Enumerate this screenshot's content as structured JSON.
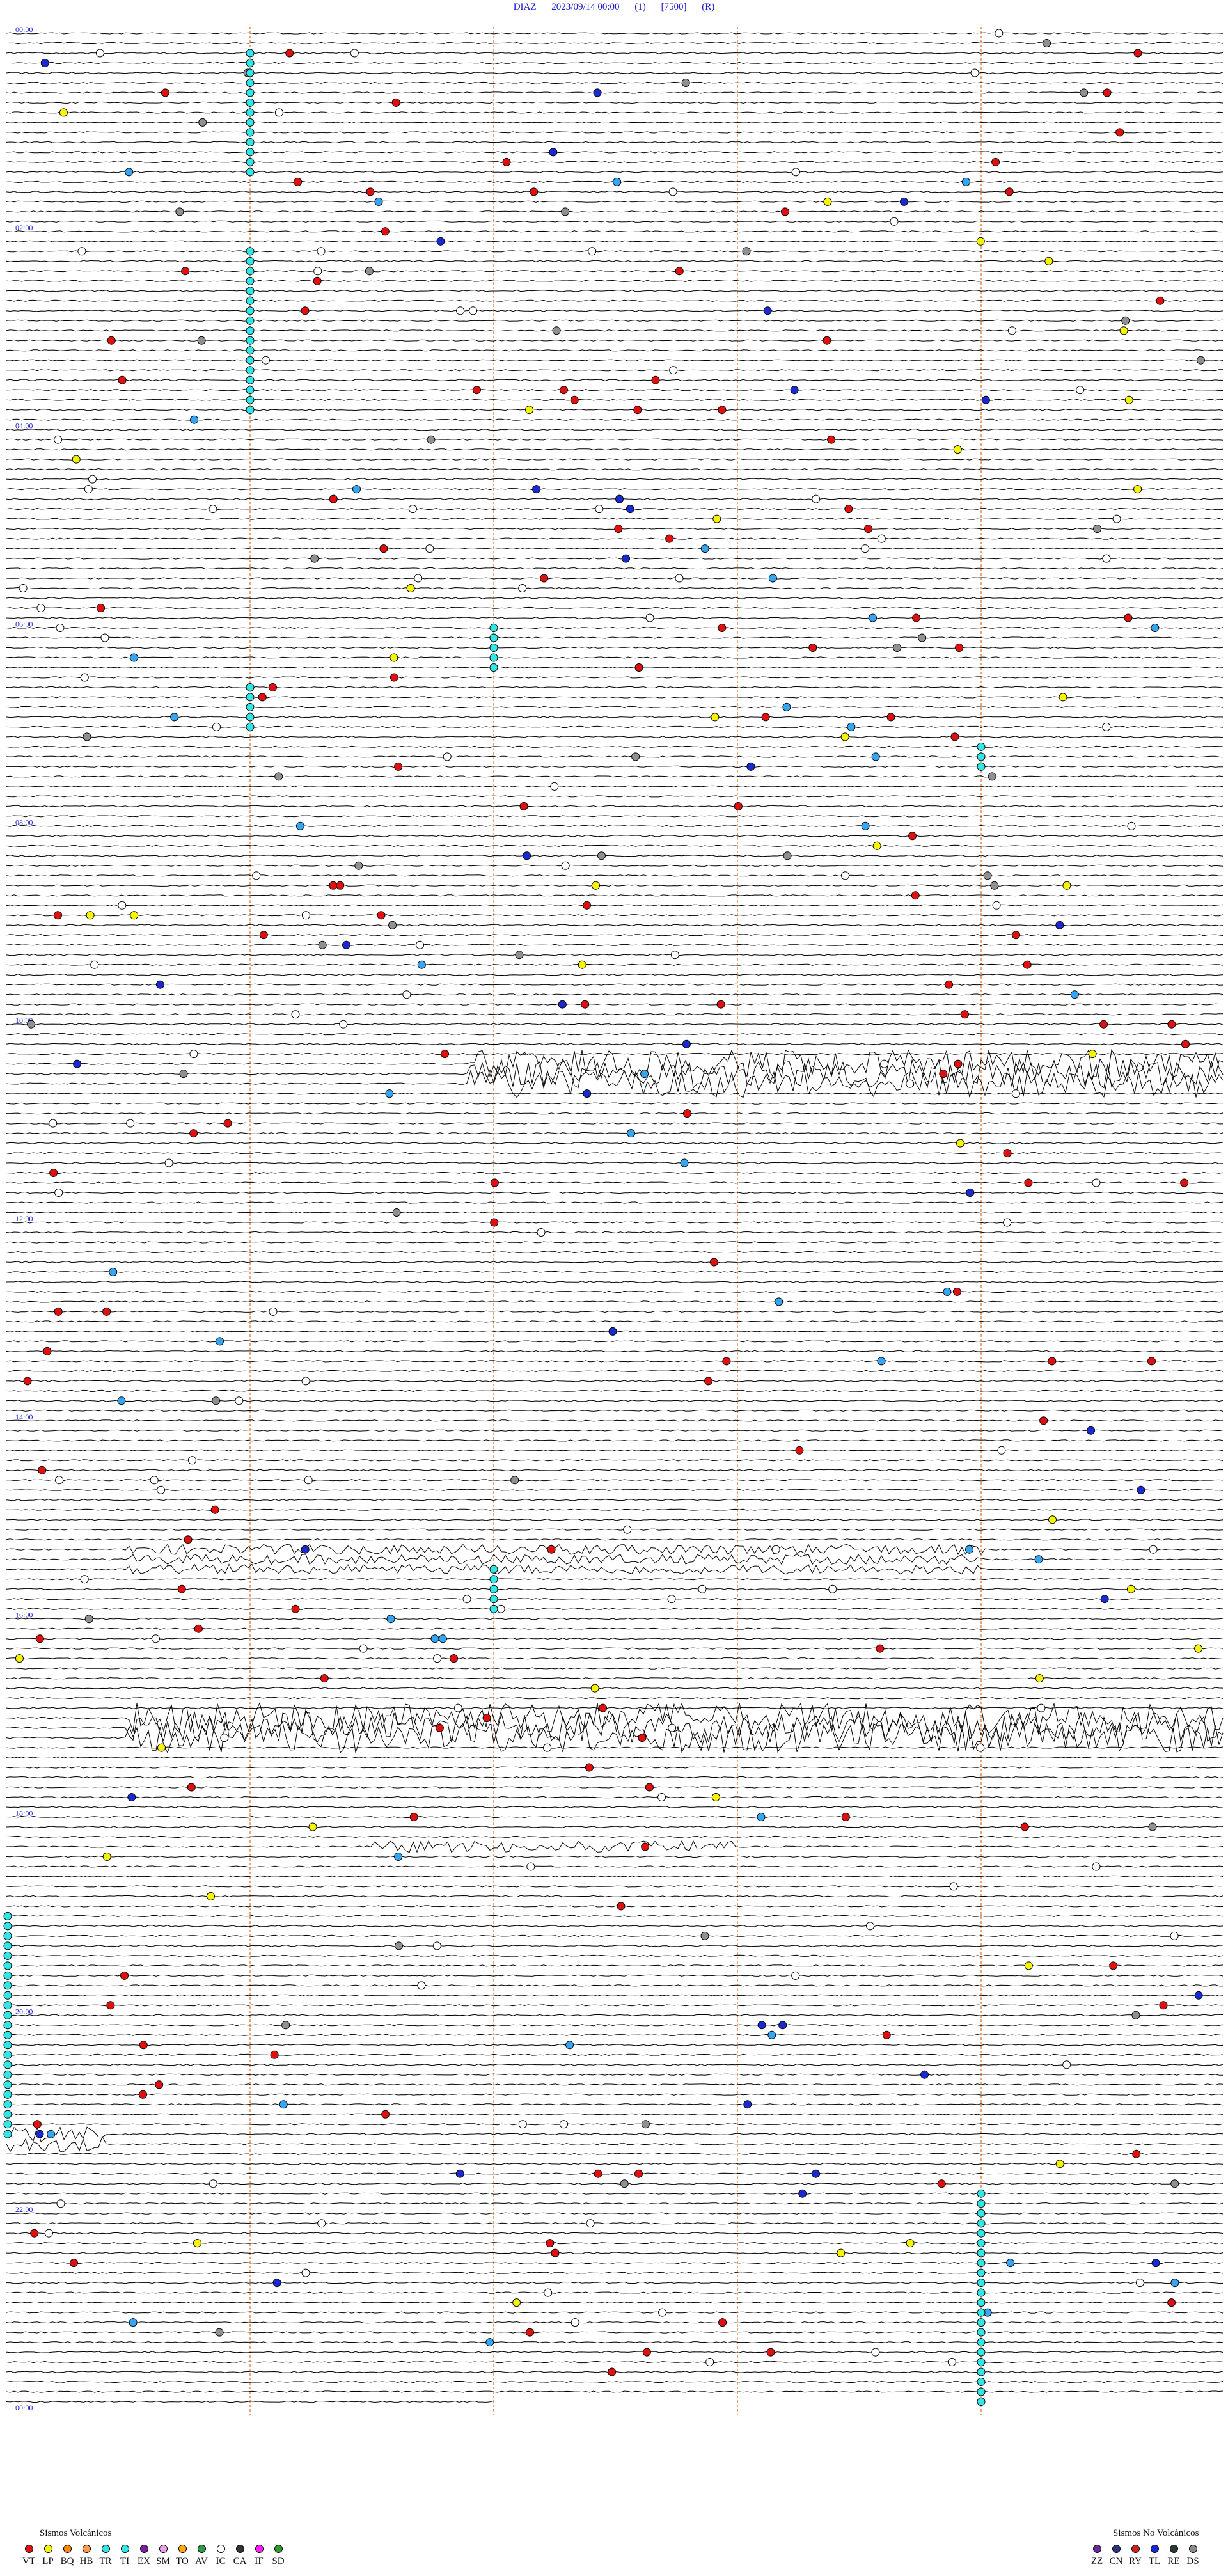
{
  "header": {
    "station": "DIAZ",
    "datetime": "2023/09/14 00:00",
    "component": "(1)",
    "scale": "[7500]",
    "flag": "(R)"
  },
  "time_labels": [
    "00:00",
    "02:00",
    "04:00",
    "06:00",
    "08:00",
    "10:00",
    "12:00",
    "14:00",
    "16:00",
    "18:00",
    "20:00",
    "22:00",
    "00:00"
  ],
  "colors": {
    "trace": "#000000",
    "time_label": "#1a1ad0",
    "minute_marker": "#e08040",
    "VT": "#e01010",
    "LP": "#f5f500",
    "BQ": "#ff8800",
    "HB": "#ff9a4a",
    "TR": "#30e6e6",
    "TI": "#30e6e6",
    "EX": "#7a1fa2",
    "SM": "#e8a0e8",
    "TO": "#ffaa00",
    "AV": "#2f9a48",
    "IC": "#ffffff",
    "CA": "#333333",
    "IF": "#ff20ff",
    "SD": "#2a9a2a",
    "ZZ": "#6a2a9a",
    "CN": "#303080",
    "RY": "#cc2020",
    "TL": "#1a2ad0",
    "RE": "#2a3a3a",
    "DS": "#8a8a8a",
    "gray": "#909090",
    "sky": "#35a6f5",
    "blue": "#1a2ad0",
    "green": "#2a9a2a",
    "white": "#ffffff",
    "yellow": "#f5f500",
    "red": "#e01010",
    "cyan": "#30e6e6"
  },
  "legend": {
    "volcanic_title": "Sismos Volcánicos",
    "volcanic": [
      {
        "code": "VT",
        "color": "#e01010"
      },
      {
        "code": "LP",
        "color": "#f5f500"
      },
      {
        "code": "BQ",
        "color": "#ff8800"
      },
      {
        "code": "HB",
        "color": "#ff9a4a"
      },
      {
        "code": "TR",
        "color": "#30e6e6"
      },
      {
        "code": "TI",
        "color": "#30e6e6"
      },
      {
        "code": "EX",
        "color": "#7a1fa2"
      },
      {
        "code": "SM",
        "color": "#e8a0e8"
      },
      {
        "code": "TO",
        "color": "#ffaa00"
      },
      {
        "code": "AV",
        "color": "#2f9a48"
      },
      {
        "code": "IC",
        "color": "#ffffff"
      },
      {
        "code": "CA",
        "color": "#333333"
      },
      {
        "code": "IF",
        "color": "#ff20ff"
      },
      {
        "code": "SD",
        "color": "#2a9a2a"
      }
    ],
    "nonvolcanic_title": "Sismos No Volcánicos",
    "nonvolcanic": [
      {
        "code": "ZZ",
        "color": "#6a2a9a"
      },
      {
        "code": "CN",
        "color": "#303080"
      },
      {
        "code": "RY",
        "color": "#cc2020"
      },
      {
        "code": "TL",
        "color": "#1a2ad0"
      },
      {
        "code": "RE",
        "color": "#2a3a3a"
      },
      {
        "code": "DS",
        "color": "#8a8a8a"
      }
    ]
  }
}
